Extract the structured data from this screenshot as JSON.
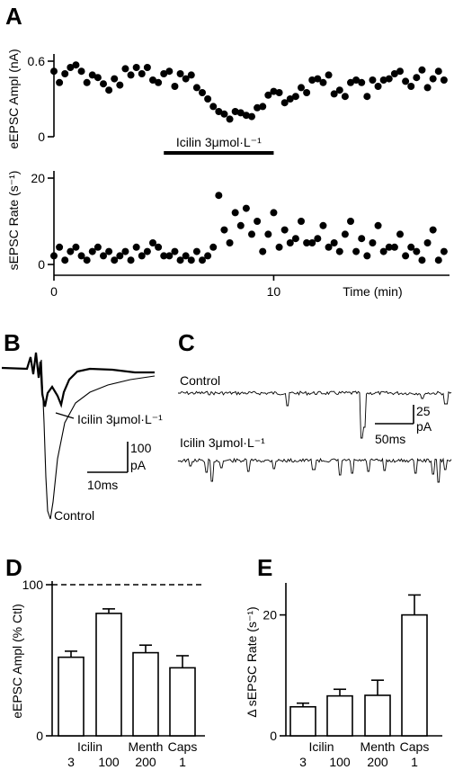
{
  "panels": {
    "A": "A",
    "B": "B",
    "C": "C",
    "D": "D",
    "E": "E"
  },
  "chart_data": [
    {
      "panel": "A",
      "type": "scatter",
      "ylabel": "eEPSC Ampl (nA)",
      "ylim": [
        0,
        0.6
      ],
      "yticks": [
        "0",
        "0.6"
      ],
      "bar_label": "Icilin 3μmol·L⁻¹",
      "bar_range": [
        5,
        10
      ],
      "xlim": [
        0,
        18
      ],
      "x": [
        0,
        0.25,
        0.5,
        0.75,
        1,
        1.25,
        1.5,
        1.75,
        2,
        2.25,
        2.5,
        2.75,
        3,
        3.25,
        3.5,
        3.75,
        4,
        4.25,
        4.5,
        4.75,
        5,
        5.25,
        5.5,
        5.75,
        6,
        6.25,
        6.5,
        6.75,
        7,
        7.25,
        7.5,
        7.75,
        8,
        8.25,
        8.5,
        8.75,
        9,
        9.25,
        9.5,
        9.75,
        10,
        10.25,
        10.5,
        10.75,
        11,
        11.25,
        11.5,
        11.75,
        12,
        12.25,
        12.5,
        12.75,
        13,
        13.25,
        13.5,
        13.75,
        14,
        14.25,
        14.5,
        14.75,
        15,
        15.25,
        15.5,
        15.75,
        16,
        16.25,
        16.5,
        16.75,
        17,
        17.25,
        17.5,
        17.75
      ],
      "y": [
        0.52,
        0.43,
        0.5,
        0.55,
        0.57,
        0.52,
        0.43,
        0.49,
        0.47,
        0.42,
        0.37,
        0.46,
        0.41,
        0.54,
        0.49,
        0.55,
        0.5,
        0.55,
        0.45,
        0.43,
        0.5,
        0.52,
        0.4,
        0.5,
        0.46,
        0.49,
        0.39,
        0.35,
        0.3,
        0.24,
        0.2,
        0.18,
        0.14,
        0.2,
        0.19,
        0.17,
        0.16,
        0.23,
        0.24,
        0.33,
        0.36,
        0.35,
        0.27,
        0.3,
        0.32,
        0.39,
        0.35,
        0.45,
        0.46,
        0.43,
        0.49,
        0.34,
        0.37,
        0.32,
        0.43,
        0.45,
        0.43,
        0.32,
        0.45,
        0.4,
        0.45,
        0.46,
        0.5,
        0.52,
        0.44,
        0.4,
        0.47,
        0.53,
        0.39,
        0.46,
        0.52,
        0.45
      ]
    },
    {
      "panel": "A",
      "type": "scatter",
      "ylabel": "sEPSC Rate (s⁻¹)",
      "ylim": [
        0,
        20
      ],
      "yticks": [
        "0",
        "20"
      ],
      "xlabel": "Time (min)",
      "xticks": [
        "0",
        "10"
      ],
      "xlim": [
        0,
        18
      ],
      "x": [
        0,
        0.25,
        0.5,
        0.75,
        1,
        1.25,
        1.5,
        1.75,
        2,
        2.25,
        2.5,
        2.75,
        3,
        3.25,
        3.5,
        3.75,
        4,
        4.25,
        4.5,
        4.75,
        5,
        5.25,
        5.5,
        5.75,
        6,
        6.25,
        6.5,
        6.75,
        7,
        7.25,
        7.5,
        7.75,
        8,
        8.25,
        8.5,
        8.75,
        9,
        9.25,
        9.5,
        9.75,
        10,
        10.25,
        10.5,
        10.75,
        11,
        11.25,
        11.5,
        11.75,
        12,
        12.25,
        12.5,
        12.75,
        13,
        13.25,
        13.5,
        13.75,
        14,
        14.25,
        14.5,
        14.75,
        15,
        15.25,
        15.5,
        15.75,
        16,
        16.25,
        16.5,
        16.75,
        17,
        17.25,
        17.5,
        17.75
      ],
      "y": [
        2,
        4,
        1,
        3,
        4,
        2,
        1,
        3,
        4,
        2,
        3,
        1,
        2,
        3,
        1,
        4,
        2,
        3,
        5,
        4,
        2,
        2,
        3,
        1,
        2,
        1,
        3,
        1,
        2,
        4,
        16,
        8,
        5,
        12,
        9,
        13,
        7,
        10,
        3,
        7,
        12,
        4,
        8,
        5,
        6,
        10,
        5,
        5,
        6,
        9,
        4,
        5,
        3,
        7,
        10,
        3,
        6,
        2,
        5,
        9,
        3,
        4,
        4,
        7,
        2,
        4,
        3,
        1,
        5,
        8,
        1,
        3
      ]
    },
    {
      "panel": "B",
      "type": "line",
      "series": [
        {
          "name": "Icilin 3μmol·L⁻¹"
        },
        {
          "name": "Control"
        }
      ],
      "scalebar_y": "100",
      "scalebar_y_unit": "pA",
      "scalebar_x": "10ms"
    },
    {
      "panel": "C",
      "type": "line",
      "series": [
        {
          "name": "Control"
        },
        {
          "name": "Icilin 3μmol·L⁻¹"
        }
      ],
      "scalebar_y": "25",
      "scalebar_y_unit": "pA",
      "scalebar_x": "50ms"
    },
    {
      "panel": "D",
      "type": "bar",
      "ylabel": "eEPSC Ampl (% Ctl)",
      "ylim": [
        0,
        100
      ],
      "yticks": [
        "0",
        "100"
      ],
      "reference_line": 100,
      "categories": [
        {
          "top": "",
          "bottom": "3"
        },
        {
          "top": "",
          "bottom": "100"
        },
        {
          "top": "",
          "bottom": "200"
        },
        {
          "top": "",
          "bottom": "1"
        }
      ],
      "group_labels": [
        {
          "label": "Icilin",
          "span": [
            0,
            1
          ]
        },
        {
          "label": "Menth",
          "span": [
            2,
            2
          ]
        },
        {
          "label": "Caps",
          "span": [
            3,
            3
          ]
        }
      ],
      "values": [
        52,
        81,
        55,
        45
      ],
      "errors": [
        4,
        3,
        5,
        8
      ]
    },
    {
      "panel": "E",
      "type": "bar",
      "ylabel": "Δ sEPSC Rate (s⁻¹)",
      "ylim": [
        0,
        25
      ],
      "yticks": [
        "0",
        "20"
      ],
      "categories": [
        {
          "top": "",
          "bottom": "3"
        },
        {
          "top": "",
          "bottom": "100"
        },
        {
          "top": "",
          "bottom": "200"
        },
        {
          "top": "",
          "bottom": "1"
        }
      ],
      "group_labels": [
        {
          "label": "Icilin",
          "span": [
            0,
            1
          ]
        },
        {
          "label": "Menth",
          "span": [
            2,
            2
          ]
        },
        {
          "label": "Caps",
          "span": [
            3,
            3
          ]
        }
      ],
      "values": [
        4.8,
        6.6,
        6.7,
        20
      ],
      "errors": [
        0.6,
        1.1,
        2.5,
        3.3
      ]
    }
  ]
}
